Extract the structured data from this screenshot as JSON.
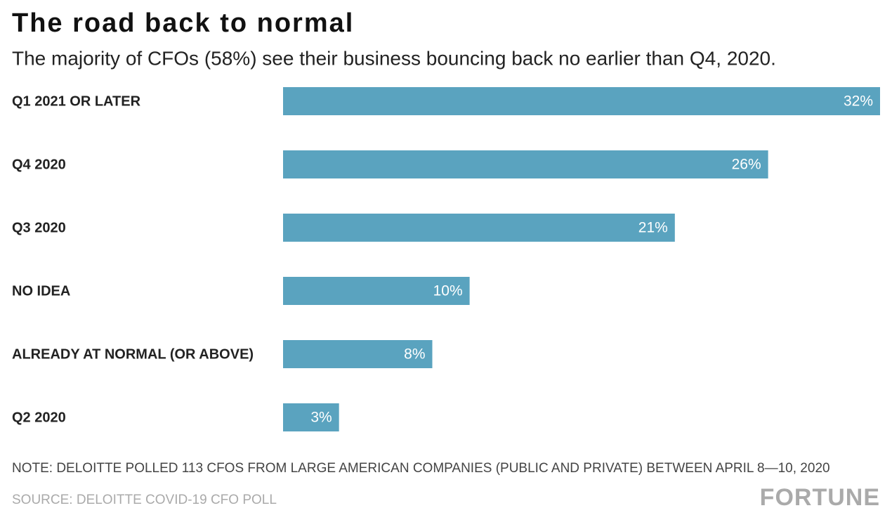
{
  "chart_data": {
    "type": "bar",
    "orientation": "horizontal",
    "title": "The road back to normal",
    "subtitle": "The majority of CFOs (58%) see their business bouncing back no earlier than Q4, 2020.",
    "categories": [
      "Q1 2021 OR LATER",
      "Q4 2020",
      "Q3 2020",
      "NO IDEA",
      "ALREADY AT NORMAL (OR ABOVE)",
      "Q2 2020"
    ],
    "values": [
      32,
      26,
      21,
      10,
      8,
      3
    ],
    "value_labels": [
      "32%",
      "26%",
      "21%",
      "10%",
      "8%",
      "3%"
    ],
    "color": "#5aa3bf",
    "note": "NOTE: DELOITTE POLLED 113 CFOS FROM LARGE AMERICAN COMPANIES (PUBLIC AND PRIVATE) BETWEEN APRIL 8—10, 2020",
    "source": "SOURCE: DELOITTE COVID-19 CFO POLL",
    "brand": "FORTUNE"
  }
}
